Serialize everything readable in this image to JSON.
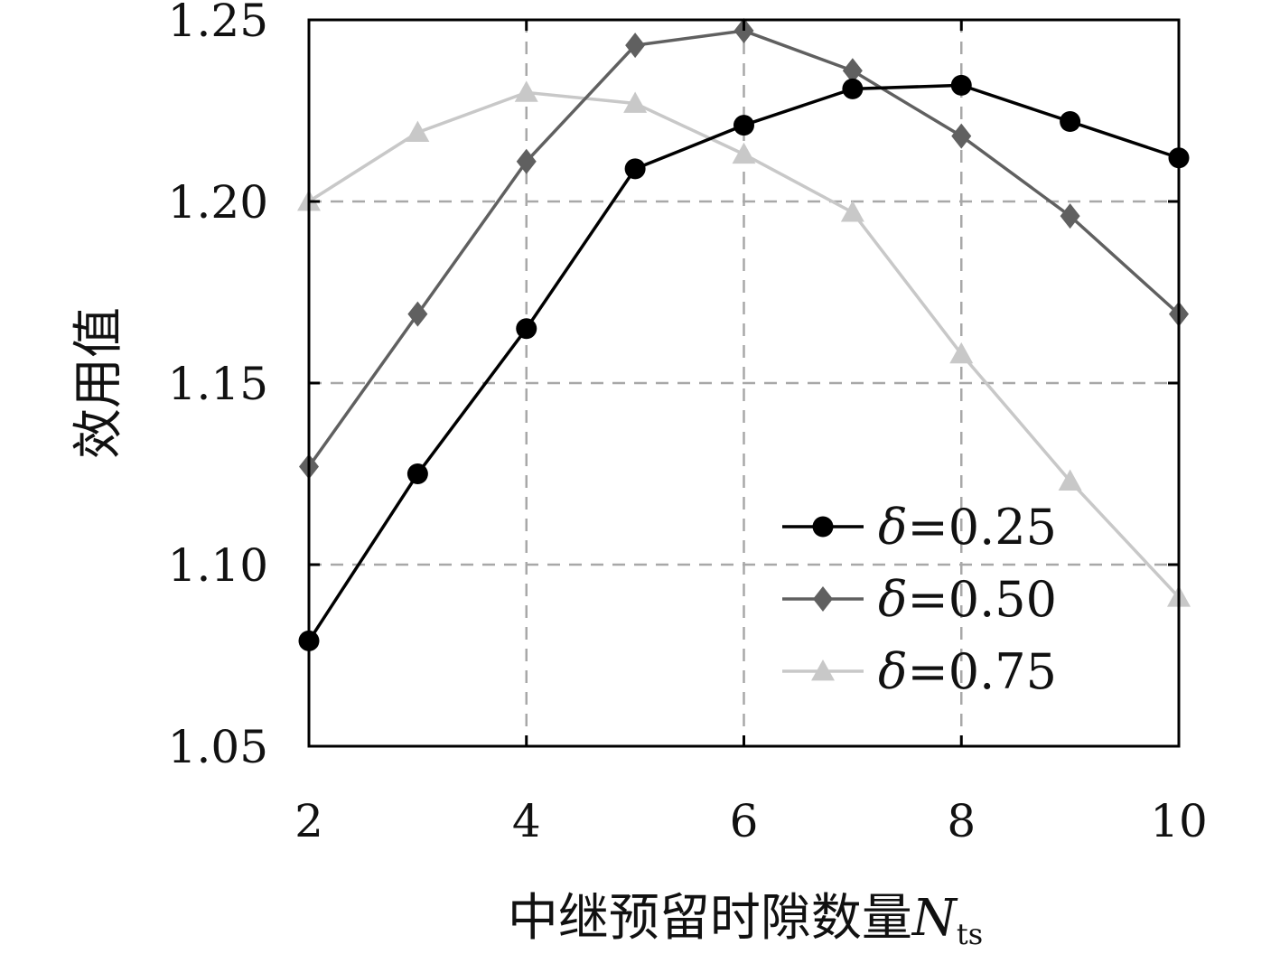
{
  "chart_data": {
    "type": "line",
    "title": "",
    "xlabel": "中继预留时隙数量",
    "xlabel_symbol": "N",
    "xlabel_subscript": "ts",
    "ylabel": "效用值",
    "xlim": [
      2,
      10
    ],
    "ylim": [
      1.05,
      1.25
    ],
    "xticks": [
      2,
      4,
      6,
      8,
      10
    ],
    "xtick_labels": [
      "2",
      "4",
      "6",
      "8",
      "10"
    ],
    "yticks": [
      1.05,
      1.1,
      1.15,
      1.2,
      1.25
    ],
    "ytick_labels": [
      "1.05",
      "1.10",
      "1.15",
      "1.20",
      "1.25"
    ],
    "grid": true,
    "legend_position": "lower-right",
    "x": [
      2,
      3,
      4,
      5,
      6,
      7,
      8,
      9,
      10
    ],
    "series": [
      {
        "name": "δ=0.25",
        "symbol": "δ",
        "value_text": "=0.25",
        "marker": "circle",
        "color": "#000000",
        "values": [
          1.079,
          1.125,
          1.165,
          1.209,
          1.221,
          1.231,
          1.232,
          1.222,
          1.212
        ]
      },
      {
        "name": "δ=0.50",
        "symbol": "δ",
        "value_text": "=0.50",
        "marker": "diamond",
        "color": "#606060",
        "values": [
          1.127,
          1.169,
          1.211,
          1.243,
          1.247,
          1.236,
          1.218,
          1.196,
          1.169
        ]
      },
      {
        "name": "δ=0.75",
        "symbol": "δ",
        "value_text": "=0.75",
        "marker": "triangle",
        "color": "#c8c8c8",
        "values": [
          1.2,
          1.219,
          1.23,
          1.227,
          1.213,
          1.197,
          1.158,
          1.123,
          1.091
        ]
      }
    ]
  }
}
